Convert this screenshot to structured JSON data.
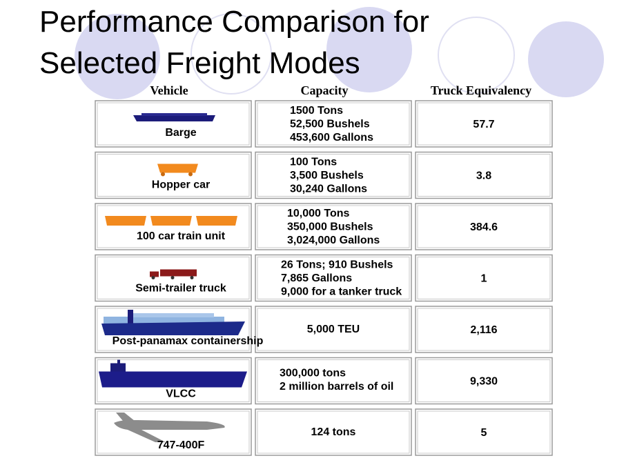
{
  "title": [
    "Performance Comparison for",
    "Selected Freight Modes"
  ],
  "headers": [
    "Vehicle",
    "Capacity",
    "Truck Equivalency"
  ],
  "rows": [
    {
      "vehicle": "Barge",
      "capacity": [
        "1500 Tons",
        "52,500 Bushels",
        "453,600 Gallons"
      ],
      "equivalency": "57.7"
    },
    {
      "vehicle": "Hopper car",
      "capacity": [
        "100 Tons",
        "3,500 Bushels",
        "30,240 Gallons"
      ],
      "equivalency": "3.8"
    },
    {
      "vehicle": "100 car train unit",
      "capacity": [
        "10,000 Tons",
        "350,000 Bushels",
        "3,024,000 Gallons"
      ],
      "equivalency": "384.6"
    },
    {
      "vehicle": "Semi-trailer truck",
      "capacity": [
        "26 Tons; 910 Bushels",
        "7,865 Gallons",
        "9,000 for a tanker truck"
      ],
      "equivalency": "1"
    },
    {
      "vehicle": "Post-panamax containership",
      "capacity": [
        "5,000 TEU"
      ],
      "equivalency": "2,116"
    },
    {
      "vehicle": "VLCC",
      "capacity": [
        "300,000 tons",
        "2 million barrels of oil"
      ],
      "equivalency": "9,330"
    },
    {
      "vehicle": "747-400F",
      "capacity": [
        "124 tons"
      ],
      "equivalency": "5"
    }
  ]
}
